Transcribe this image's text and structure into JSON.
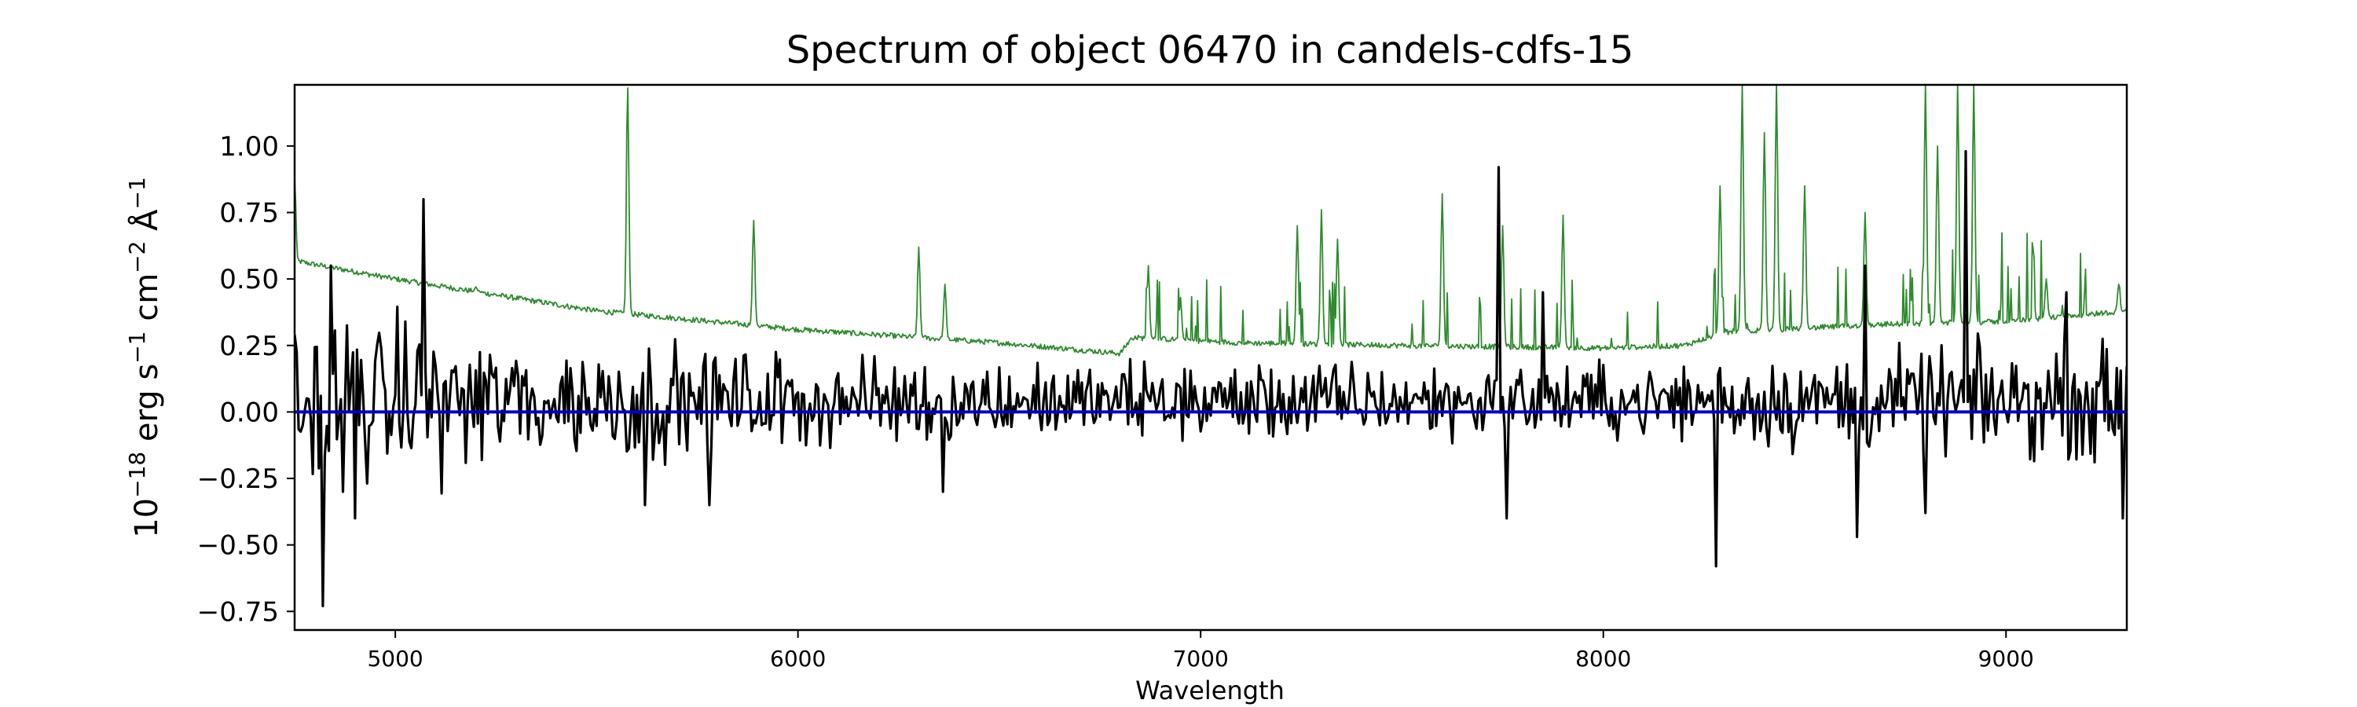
{
  "chart_data": {
    "type": "line",
    "title": "Spectrum of object 06470 in candels-cdfs-15",
    "xlabel": "Wavelength",
    "ylabel": {
      "base": "10",
      "base_exp": "−18",
      "text1": " erg s",
      "exp1": "−1",
      "text2": " cm",
      "exp2": "−2",
      "text3": " Å",
      "exp3": "−1"
    },
    "xlim": [
      4750,
      9300
    ],
    "ylim": [
      -0.82,
      1.23
    ],
    "x_ticks": [
      5000,
      6000,
      7000,
      8000,
      9000
    ],
    "x_tick_labels": [
      "5000",
      "6000",
      "7000",
      "8000",
      "9000"
    ],
    "y_ticks": [
      -0.75,
      -0.5,
      -0.25,
      0.0,
      0.25,
      0.5,
      0.75,
      1.0
    ],
    "y_tick_labels": [
      "−0.75",
      "−0.50",
      "−0.25",
      "0.00",
      "0.25",
      "0.50",
      "0.75",
      "1.00"
    ],
    "grid": false,
    "colors": {
      "flux": "#000000",
      "error": "#2e8b2e",
      "zero": "#0000cc"
    },
    "series": [
      {
        "id": "error",
        "x_start": 4750,
        "x_end": 9300,
        "continuum": [
          [
            4750,
            0.57
          ],
          [
            4780,
            0.56
          ],
          [
            5000,
            0.5
          ],
          [
            5500,
            0.38
          ],
          [
            6000,
            0.31
          ],
          [
            6500,
            0.26
          ],
          [
            6800,
            0.22
          ],
          [
            6830,
            0.28
          ],
          [
            7100,
            0.26
          ],
          [
            7500,
            0.25
          ],
          [
            8000,
            0.24
          ],
          [
            8200,
            0.25
          ],
          [
            8300,
            0.3
          ],
          [
            8700,
            0.33
          ],
          [
            9000,
            0.34
          ],
          [
            9300,
            0.38
          ]
        ],
        "peaks": [
          [
            4750,
            0.88
          ],
          [
            5200,
            0.47
          ],
          [
            5577,
            1.23
          ],
          [
            5890,
            0.72
          ],
          [
            6300,
            0.62
          ],
          [
            6365,
            0.48
          ],
          [
            6870,
            0.55
          ],
          [
            6950,
            0.43
          ],
          [
            7240,
            0.7
          ],
          [
            7300,
            0.76
          ],
          [
            7340,
            0.65
          ],
          [
            7600,
            0.82
          ],
          [
            7750,
            0.7
          ],
          [
            7900,
            0.74
          ],
          [
            8290,
            0.85
          ],
          [
            8345,
            1.23
          ],
          [
            8400,
            1.05
          ],
          [
            8430,
            1.23
          ],
          [
            8500,
            0.85
          ],
          [
            8650,
            0.75
          ],
          [
            8800,
            1.23
          ],
          [
            8830,
            1.0
          ],
          [
            8880,
            1.23
          ],
          [
            8920,
            1.23
          ],
          [
            9100,
            0.5
          ],
          [
            9280,
            0.48
          ]
        ]
      },
      {
        "id": "flux",
        "x_start": 4750,
        "x_end": 9300,
        "features": [
          [
            4820,
            -0.73
          ],
          [
            4840,
            0.55
          ],
          [
            4870,
            -0.3
          ],
          [
            4900,
            -0.4
          ],
          [
            5070,
            0.8
          ],
          [
            5620,
            -0.35
          ],
          [
            5780,
            -0.35
          ],
          [
            6360,
            -0.3
          ],
          [
            7740,
            0.92
          ],
          [
            7760,
            -0.4
          ],
          [
            7850,
            0.45
          ],
          [
            8280,
            -0.58
          ],
          [
            8630,
            -0.47
          ],
          [
            8650,
            0.55
          ],
          [
            8800,
            -0.38
          ],
          [
            8900,
            0.98
          ],
          [
            9150,
            0.45
          ],
          [
            9290,
            -0.4
          ]
        ]
      }
    ]
  }
}
